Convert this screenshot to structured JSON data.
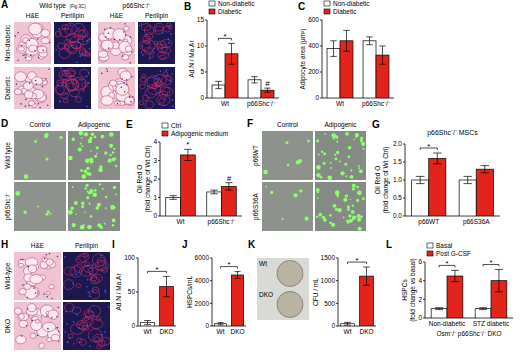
{
  "image_panels": [
    {
      "panel": "A",
      "groups": [
        "Wild type",
        "p66Shc⁻/⁻"
      ],
      "note": "(Fig 3C)",
      "columns": [
        "H&E",
        "Perilipin"
      ],
      "rows": [
        "Non-diabetic",
        "Diabetic"
      ]
    },
    {
      "panel": "D",
      "columns": [
        "Control",
        "Adipogenic"
      ],
      "rows": [
        "Wild type",
        "p66Shc⁻/⁻"
      ]
    },
    {
      "panel": "F",
      "columns": [
        "Control",
        "Adipogenic"
      ],
      "rows": [
        "p66WT",
        "p66S36A"
      ]
    },
    {
      "panel": "H",
      "columns": [
        "H&E",
        "Perilipin"
      ],
      "rows": [
        "Wild-type",
        "DKO"
      ]
    }
  ],
  "chart_data": [
    {
      "panel": "B",
      "type": "bar",
      "categories": [
        "Wt",
        "p66Shc⁻/⁻"
      ],
      "series": [
        {
          "name": "Non-diabetic",
          "color": "#ffffff",
          "values": [
            2.5,
            3.5
          ],
          "errors": [
            0.7,
            0.6
          ]
        },
        {
          "name": "Diabetic",
          "color": "#e3241b",
          "values": [
            8.5,
            1.5
          ],
          "errors": [
            2.0,
            0.4
          ],
          "marks": [
            null,
            "#"
          ]
        }
      ],
      "y_label": [
        "Ad.N / Ma.Ar"
      ],
      "ylim": [
        0,
        15
      ],
      "yticks": [
        0,
        5,
        10,
        15
      ],
      "legend": "top",
      "brackets": [
        "*",
        null
      ]
    },
    {
      "panel": "C",
      "type": "bar",
      "categories": [
        "Wt",
        "p66Shc⁻/⁻"
      ],
      "series": [
        {
          "name": "Non-diabetic",
          "color": "#ffffff",
          "values": [
            380,
            440
          ],
          "errors": [
            60,
            30
          ]
        },
        {
          "name": "Diabetic",
          "color": "#e3241b",
          "values": [
            440,
            330
          ],
          "errors": [
            80,
            70
          ]
        }
      ],
      "y_label": [
        "Adipocyte area (µm²)"
      ],
      "ylim": [
        0,
        600
      ],
      "yticks": [
        0,
        200,
        400,
        600
      ],
      "legend": "top"
    },
    {
      "panel": "E",
      "type": "bar",
      "categories": [
        "Wt",
        "p66Shc⁻/⁻"
      ],
      "series": [
        {
          "name": "Ctrl",
          "color": "#ffffff",
          "values": [
            1.0,
            1.3
          ],
          "errors": [
            0.1,
            0.1
          ]
        },
        {
          "name": "Adipogenic medium",
          "color": "#e3241b",
          "values": [
            3.3,
            1.6
          ],
          "errors": [
            0.3,
            0.2
          ],
          "marks": [
            "*",
            "#"
          ]
        }
      ],
      "y_label": [
        "Oil Red O",
        "(fold change of Wt Ctrl)"
      ],
      "ylim": [
        0,
        4
      ],
      "yticks": [
        0,
        1,
        2,
        3,
        4
      ],
      "legend": "top"
    },
    {
      "panel": "G",
      "type": "bar",
      "title": "p66Shc⁻/⁻ MSCs",
      "categories": [
        "p66WT",
        "p66S36A"
      ],
      "series": [
        {
          "color": "#ffffff",
          "values": [
            1.0,
            1.0
          ],
          "errors": [
            0.1,
            0.1
          ]
        },
        {
          "color": "#e3241b",
          "values": [
            1.6,
            1.3
          ],
          "errors": [
            0.15,
            0.1
          ]
        }
      ],
      "y_label": [
        "Oil Red O",
        "(fold change of Wt Ctrl)"
      ],
      "ylim": [
        0,
        2
      ],
      "yticks": [
        {
          "value": 0,
          "label": "0.0"
        },
        0.5,
        {
          "value": 1,
          "label": "1.0"
        },
        1.5,
        {
          "value": 2,
          "label": "2.0"
        }
      ],
      "brackets": [
        "*",
        null
      ]
    },
    {
      "panel": "I",
      "type": "bar",
      "categories": [
        "Wt",
        "DKO"
      ],
      "series": [
        {
          "colors": [
            "#ffffff",
            "#e3241b"
          ],
          "values": [
            5,
            58
          ],
          "errors": [
            3,
            15
          ]
        }
      ],
      "y_label": [
        "Ad.N / Ma.Ar"
      ],
      "ylim": [
        0,
        100
      ],
      "yticks": [
        0,
        50,
        100
      ],
      "brackets": [
        "*"
      ]
    },
    {
      "panel": "J",
      "type": "bar",
      "categories": [
        "Wt",
        "DKO"
      ],
      "series": [
        {
          "colors": [
            "#ffffff",
            "#e3241b"
          ],
          "values": [
            200,
            4500
          ],
          "errors": [
            100,
            300
          ]
        }
      ],
      "y_label": [
        "HSPCs/mL"
      ],
      "ylim": [
        0,
        6000
      ],
      "yticks": [
        0,
        2000,
        4000,
        6000
      ],
      "brackets": [
        "*"
      ]
    },
    {
      "panel": "K",
      "type": "bar",
      "categories": [
        "Wt",
        "DKO"
      ],
      "series": [
        {
          "colors": [
            "#ffffff",
            "#e3241b"
          ],
          "values": [
            50,
            1100
          ],
          "errors": [
            30,
            200
          ]
        }
      ],
      "y_label": [
        "CFU / mL"
      ],
      "ylim": [
        0,
        1500
      ],
      "yticks": [
        0,
        500,
        1000,
        1500
      ],
      "brackets": [
        "*"
      ],
      "photo_labels": [
        "Wt",
        "DKO"
      ]
    },
    {
      "panel": "L",
      "type": "bar",
      "categories": [
        "Non-diabetic",
        "STZ diabetic"
      ],
      "series": [
        {
          "name": "Basal",
          "color": "#ffffff",
          "values": [
            1.0,
            1.0
          ],
          "errors": [
            0.1,
            0.1
          ]
        },
        {
          "name": "Post G-CSF",
          "color": "#e3241b",
          "values": [
            4.5,
            4.0
          ],
          "errors": [
            0.6,
            1.2
          ]
        }
      ],
      "y_label": [
        "HSPCs",
        "(fold change vs basal)"
      ],
      "x_label": "Osm⁻/⁻ p66Shc⁻/⁻ DKO",
      "ylim": [
        0,
        6
      ],
      "yticks": [
        0,
        2,
        4,
        6
      ],
      "legend": "top",
      "brackets": [
        "*",
        "*"
      ]
    }
  ]
}
